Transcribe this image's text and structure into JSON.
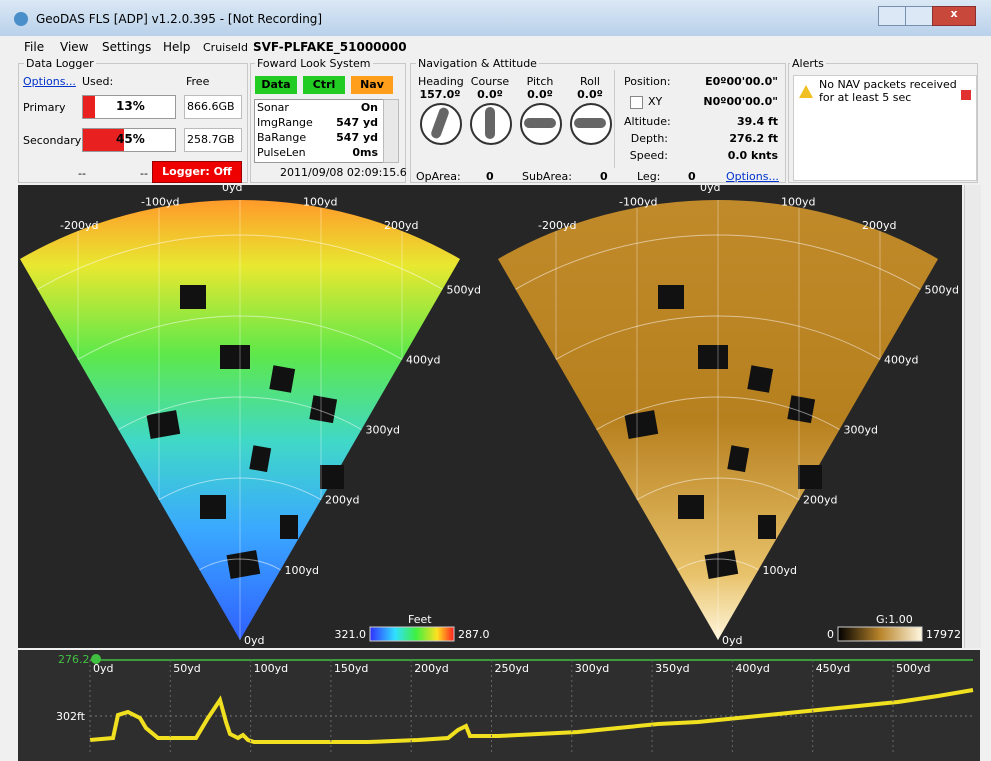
{
  "window": {
    "title": "GeoDAS FLS [ADP] v1.2.0.395 - [Not Recording]"
  },
  "menu": {
    "items": [
      "File",
      "View",
      "Settings",
      "Help"
    ],
    "cruise_label": "CruiseId",
    "cruise_id": "SVF-PLFAKE_51000000"
  },
  "data_logger": {
    "title": "Data Logger",
    "options": "Options...",
    "used_label": "Used:",
    "free_label": "Free",
    "rows": [
      {
        "name": "Primary",
        "used": 13,
        "used_text": "13%",
        "free": "866.6GB"
      },
      {
        "name": "Secondary",
        "used": 45,
        "used_text": "45%",
        "free": "258.7GB"
      }
    ],
    "status": [
      "--",
      "--"
    ],
    "logger_button": "Logger: Off"
  },
  "forward_look": {
    "title": "Foward Look System",
    "buttons": [
      "Data",
      "Ctrl",
      "Nav"
    ],
    "rows": [
      [
        "Sonar",
        "On"
      ],
      [
        "ImgRange",
        "547 yd"
      ],
      [
        "BaRange",
        "547 yd"
      ],
      [
        "PulseLen",
        "0ms"
      ]
    ],
    "timestamp": "2011/09/08 02:09:15.6"
  },
  "navigation": {
    "title": "Navigation & Attitude",
    "gauges": [
      {
        "label": "Heading",
        "value": "157.0º"
      },
      {
        "label": "Course",
        "value": "0.0º"
      },
      {
        "label": "Pitch",
        "value": "0.0º"
      },
      {
        "label": "Roll",
        "value": "0.0º"
      }
    ],
    "readouts": [
      {
        "label": "Position:",
        "value": "E0º00'00.0\""
      },
      {
        "label": "XY",
        "value": "N0º00'00.0\""
      },
      {
        "label": "Altitude:",
        "value": "39.4 ft"
      },
      {
        "label": "Depth:",
        "value": "276.2 ft"
      },
      {
        "label": "Speed:",
        "value": "0.0 knts"
      }
    ],
    "footer": [
      {
        "label": "OpArea:",
        "value": "0"
      },
      {
        "label": "SubArea:",
        "value": "0"
      },
      {
        "label": "Leg:",
        "value": "0"
      }
    ],
    "options": "Options..."
  },
  "alerts": {
    "title": "Alerts",
    "message": "No NAV packets received for at least 5 sec"
  },
  "sonar": {
    "depth_view": {
      "range_labels": [
        "0yd",
        "100yd",
        "200yd",
        "300yd",
        "400yd",
        "500yd"
      ],
      "cross_labels": [
        "-200yd",
        "-100yd",
        "0yd",
        "100yd",
        "200yd"
      ],
      "colorbar": {
        "title": "Feet",
        "min": "321.0",
        "max": "287.0"
      }
    },
    "intensity_view": {
      "range_labels": [
        "0yd",
        "100yd",
        "200yd",
        "300yd",
        "400yd",
        "500yd"
      ],
      "cross_labels": [
        "-200yd",
        "-100yd",
        "0yd",
        "100yd",
        "200yd"
      ],
      "colorbar": {
        "title": "G:1.00",
        "min": "0",
        "max": "17972"
      }
    }
  },
  "profile": {
    "depth_marker": "276.2",
    "depth_label": "302ft",
    "x_labels": [
      "0yd",
      "50yd",
      "100yd",
      "150yd",
      "200yd",
      "250yd",
      "300yd",
      "350yd",
      "400yd",
      "450yd",
      "500yd"
    ]
  }
}
